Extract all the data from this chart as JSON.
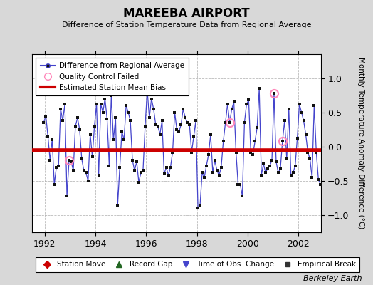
{
  "title": "MAREEBA AIRPORT",
  "subtitle": "Difference of Station Temperature Data from Regional Average",
  "ylabel": "Monthly Temperature Anomaly Difference (°C)",
  "credit": "Berkeley Earth",
  "xlim": [
    1991.5,
    2002.9
  ],
  "ylim": [
    -1.25,
    1.35
  ],
  "yticks": [
    -1,
    -0.5,
    0,
    0.5,
    1
  ],
  "xticks": [
    1992,
    1994,
    1996,
    1998,
    2000,
    2002
  ],
  "mean_bias": -0.05,
  "background_color": "#d8d8d8",
  "plot_bg_color": "#ffffff",
  "line_color": "#4444cc",
  "marker_color": "#111111",
  "bias_color": "#cc0000",
  "qc_color": "#ff88bb",
  "x_data": [
    1991.958,
    1992.042,
    1992.125,
    1992.208,
    1992.292,
    1992.375,
    1992.458,
    1992.542,
    1992.625,
    1992.708,
    1992.792,
    1992.875,
    1992.958,
    1993.042,
    1993.125,
    1993.208,
    1993.292,
    1993.375,
    1993.458,
    1993.542,
    1993.625,
    1993.708,
    1993.792,
    1993.875,
    1993.958,
    1994.042,
    1994.125,
    1994.208,
    1994.292,
    1994.375,
    1994.458,
    1994.542,
    1994.625,
    1994.708,
    1994.792,
    1994.875,
    1994.958,
    1995.042,
    1995.125,
    1995.208,
    1995.292,
    1995.375,
    1995.458,
    1995.542,
    1995.625,
    1995.708,
    1995.792,
    1995.875,
    1995.958,
    1996.042,
    1996.125,
    1996.208,
    1996.292,
    1996.375,
    1996.458,
    1996.542,
    1996.625,
    1996.708,
    1996.792,
    1996.875,
    1996.958,
    1997.042,
    1997.125,
    1997.208,
    1997.292,
    1997.375,
    1997.458,
    1997.542,
    1997.625,
    1997.708,
    1997.792,
    1997.875,
    1997.958,
    1998.042,
    1998.125,
    1998.208,
    1998.292,
    1998.375,
    1998.458,
    1998.542,
    1998.625,
    1998.708,
    1998.792,
    1998.875,
    1998.958,
    1999.042,
    1999.125,
    1999.208,
    1999.292,
    1999.375,
    1999.458,
    1999.542,
    1999.625,
    1999.708,
    1999.792,
    1999.875,
    1999.958,
    2000.042,
    2000.125,
    2000.208,
    2000.292,
    2000.375,
    2000.458,
    2000.542,
    2000.625,
    2000.708,
    2000.792,
    2000.875,
    2000.958,
    2001.042,
    2001.125,
    2001.208,
    2001.292,
    2001.375,
    2001.458,
    2001.542,
    2001.625,
    2001.708,
    2001.792,
    2001.875,
    2001.958,
    2002.042,
    2002.125,
    2002.208,
    2002.292,
    2002.375,
    2002.458,
    2002.542,
    2002.625,
    2002.708,
    2002.792,
    2002.875
  ],
  "y_data": [
    0.35,
    0.45,
    0.15,
    -0.2,
    0.1,
    -0.55,
    -0.3,
    -0.28,
    0.55,
    0.38,
    0.62,
    -0.72,
    -0.2,
    -0.22,
    -0.35,
    0.3,
    0.42,
    0.25,
    -0.18,
    -0.35,
    -0.38,
    -0.5,
    0.18,
    -0.15,
    0.3,
    0.62,
    -0.42,
    0.62,
    0.5,
    0.7,
    0.4,
    -0.28,
    0.75,
    0.1,
    0.42,
    -0.85,
    -0.3,
    0.22,
    0.1,
    0.6,
    0.5,
    0.38,
    -0.2,
    -0.35,
    -0.22,
    -0.52,
    -0.38,
    -0.35,
    0.3,
    0.82,
    0.42,
    0.7,
    0.55,
    0.32,
    0.3,
    0.18,
    0.38,
    -0.4,
    -0.3,
    -0.42,
    -0.3,
    -0.08,
    0.5,
    0.25,
    0.22,
    0.32,
    0.55,
    0.42,
    0.35,
    0.32,
    -0.08,
    0.15,
    0.38,
    -0.9,
    -0.85,
    -0.38,
    -0.45,
    -0.28,
    -0.12,
    0.18,
    -0.38,
    -0.2,
    -0.35,
    -0.42,
    -0.3,
    0.08,
    0.35,
    0.62,
    0.35,
    0.55,
    0.65,
    -0.08,
    -0.55,
    -0.55,
    -0.72,
    0.35,
    0.62,
    0.68,
    -0.08,
    -0.12,
    0.08,
    0.28,
    0.85,
    -0.42,
    -0.25,
    -0.38,
    -0.32,
    -0.28,
    -0.2,
    0.78,
    -0.22,
    -0.38,
    -0.32,
    0.08,
    0.38,
    -0.18,
    0.55,
    -0.42,
    -0.38,
    -0.28,
    0.12,
    0.62,
    0.5,
    0.38,
    0.18,
    -0.08,
    -0.18,
    -0.45,
    0.6,
    -0.08,
    -0.48,
    -0.55
  ],
  "qc_failed_indices": [
    12,
    88,
    109,
    113
  ],
  "legend1_labels": [
    "Difference from Regional Average",
    "Quality Control Failed",
    "Estimated Station Mean Bias"
  ],
  "legend2_labels": [
    "Station Move",
    "Record Gap",
    "Time of Obs. Change",
    "Empirical Break"
  ]
}
